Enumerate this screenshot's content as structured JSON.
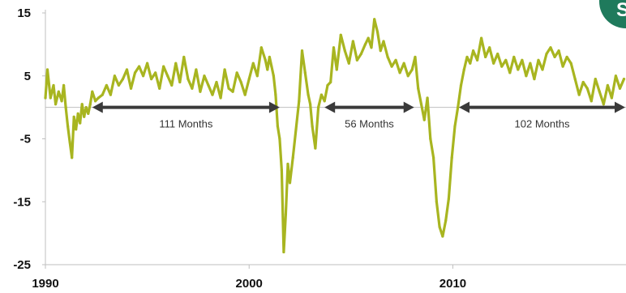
{
  "chart_data": {
    "type": "line",
    "title": "",
    "xlabel": "",
    "ylabel": "",
    "xlim": [
      1990,
      2018.5
    ],
    "ylim": [
      -25,
      15
    ],
    "x_ticks": [
      "1990",
      "2000",
      "2010"
    ],
    "y_ticks": [
      "15",
      "5",
      "-5",
      "-15",
      "-25"
    ],
    "zero_line": true,
    "grid": false,
    "colors": {
      "series": "#a8b520",
      "axis": "#bfbfbf",
      "arrow": "#3a3a3a",
      "badge": "#1f7a5c"
    },
    "series": [
      {
        "x": [
          1990.0,
          1990.1,
          1990.25,
          1990.4,
          1990.5,
          1990.65,
          1990.8,
          1990.9,
          1991.0,
          1991.1,
          1991.2,
          1991.3,
          1991.4,
          1991.5,
          1991.6,
          1991.7,
          1991.8,
          1991.9,
          1992.0,
          1992.1,
          1992.2,
          1992.3,
          1992.45,
          1992.6,
          1992.8,
          1993.0,
          1993.2,
          1993.4,
          1993.6,
          1993.8,
          1994.0,
          1994.2,
          1994.4,
          1994.6,
          1994.8,
          1995.0,
          1995.2,
          1995.4,
          1995.6,
          1995.8,
          1996.0,
          1996.2,
          1996.4,
          1996.6,
          1996.8,
          1997.0,
          1997.2,
          1997.4,
          1997.6,
          1997.8,
          1998.0,
          1998.2,
          1998.4,
          1998.6,
          1998.8,
          1999.0,
          1999.2,
          1999.4,
          1999.6,
          1999.8,
          2000.0,
          2000.2,
          2000.4,
          2000.6,
          2000.8,
          2000.9,
          2001.0,
          2001.1,
          2001.2,
          2001.3,
          2001.4,
          2001.5,
          2001.6,
          2001.7,
          2001.8,
          2001.9,
          2002.0,
          2002.15,
          2002.3,
          2002.45,
          2002.6,
          2002.75,
          2002.9,
          2003.0,
          2003.1,
          2003.25,
          2003.4,
          2003.55,
          2003.7,
          2003.85,
          2004.0,
          2004.15,
          2004.3,
          2004.5,
          2004.7,
          2004.9,
          2005.1,
          2005.3,
          2005.5,
          2005.7,
          2005.85,
          2006.0,
          2006.15,
          2006.3,
          2006.45,
          2006.6,
          2006.8,
          2007.0,
          2007.2,
          2007.4,
          2007.6,
          2007.8,
          2008.0,
          2008.15,
          2008.3,
          2008.45,
          2008.6,
          2008.75,
          2008.9,
          2009.05,
          2009.2,
          2009.35,
          2009.5,
          2009.65,
          2009.8,
          2009.95,
          2010.1,
          2010.25,
          2010.4,
          2010.55,
          2010.7,
          2010.85,
          2011.0,
          2011.2,
          2011.4,
          2011.6,
          2011.8,
          2012.0,
          2012.2,
          2012.4,
          2012.6,
          2012.8,
          2013.0,
          2013.2,
          2013.4,
          2013.6,
          2013.8,
          2014.0,
          2014.2,
          2014.4,
          2014.6,
          2014.8,
          2015.0,
          2015.2,
          2015.4,
          2015.6,
          2015.8,
          2016.0,
          2016.2,
          2016.4,
          2016.6,
          2016.8,
          2017.0,
          2017.2,
          2017.4,
          2017.6,
          2017.8,
          2018.0,
          2018.2,
          2018.4
        ],
        "y": [
          1.5,
          6.0,
          1.5,
          3.5,
          0.5,
          2.5,
          1.0,
          3.5,
          0.0,
          -3.0,
          -5.5,
          -8.0,
          -1.5,
          -3.5,
          -1.0,
          -2.5,
          0.5,
          -1.5,
          0.0,
          -1.0,
          0.5,
          2.5,
          1.0,
          1.5,
          2.0,
          3.5,
          2.0,
          5.0,
          3.5,
          4.5,
          6.0,
          3.0,
          5.5,
          6.5,
          5.0,
          7.0,
          4.5,
          5.5,
          3.0,
          6.5,
          5.0,
          3.5,
          7.0,
          4.0,
          8.0,
          4.5,
          3.0,
          6.0,
          2.5,
          5.0,
          3.5,
          2.0,
          4.0,
          1.5,
          6.0,
          3.0,
          2.5,
          5.5,
          4.0,
          2.0,
          4.5,
          7.0,
          5.0,
          9.5,
          7.5,
          6.0,
          8.0,
          6.5,
          5.0,
          2.0,
          -3.0,
          -5.0,
          -10.0,
          -23.0,
          -17.0,
          -9.0,
          -12.0,
          -8.0,
          -3.5,
          1.0,
          9.0,
          5.5,
          2.0,
          0.5,
          -3.0,
          -6.5,
          0.0,
          2.0,
          1.0,
          3.5,
          4.0,
          9.5,
          6.0,
          11.5,
          9.0,
          7.0,
          10.5,
          7.5,
          8.5,
          10.0,
          11.0,
          9.5,
          14.0,
          12.0,
          9.0,
          10.5,
          8.0,
          6.5,
          7.5,
          5.5,
          7.0,
          5.0,
          6.0,
          8.0,
          3.0,
          0.5,
          -2.0,
          1.5,
          -5.0,
          -8.0,
          -15.0,
          -19.0,
          -20.5,
          -18.0,
          -14.5,
          -8.0,
          -3.0,
          0.0,
          3.5,
          6.0,
          8.0,
          7.0,
          9.0,
          7.5,
          11.0,
          8.0,
          9.5,
          7.0,
          8.5,
          6.5,
          7.5,
          5.5,
          8.0,
          6.0,
          7.5,
          5.0,
          7.0,
          4.5,
          7.5,
          6.0,
          8.5,
          9.5,
          8.0,
          9.0,
          6.5,
          8.0,
          7.0,
          4.5,
          2.0,
          4.0,
          3.0,
          1.0,
          4.5,
          2.5,
          0.5,
          3.5,
          1.5,
          5.0,
          3.0,
          4.5
        ]
      }
    ],
    "annotations": [
      {
        "label": "111 Months",
        "x_start": 1992.3,
        "x_end": 2001.5,
        "y": 0
      },
      {
        "label": "56 Months",
        "x_start": 2003.7,
        "x_end": 2008.1,
        "y": 0
      },
      {
        "label": "102 Months",
        "x_start": 2010.3,
        "x_end": 2018.5,
        "y": 0
      }
    ]
  },
  "badge": {
    "glyph": "S",
    "color": "#1f7a5c"
  }
}
